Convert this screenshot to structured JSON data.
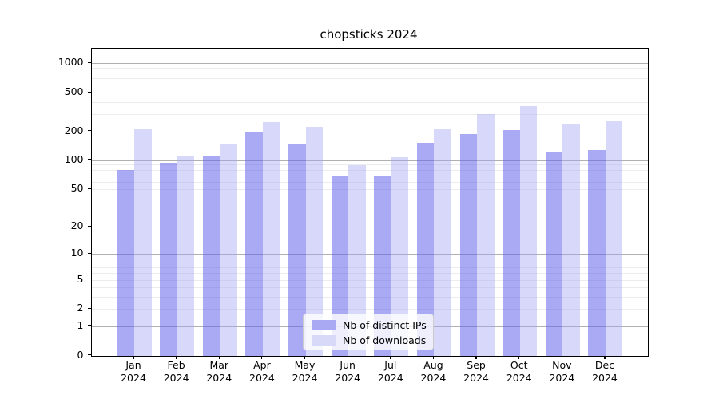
{
  "chart_data": {
    "type": "bar",
    "title": "chopsticks 2024",
    "categories": [
      "Jan",
      "Feb",
      "Mar",
      "Apr",
      "May",
      "Jun",
      "Jul",
      "Aug",
      "Sep",
      "Oct",
      "Nov",
      "Dec"
    ],
    "x_year_suffix": "2024",
    "series": [
      {
        "name": "Nb of distinct IPs",
        "legend_color": "#a9a9f3",
        "fill": "rgba(99,99,235,0.55)",
        "values": [
          79,
          95,
          112,
          199,
          147,
          70,
          70,
          153,
          187,
          206,
          121,
          128
        ]
      },
      {
        "name": "Nb of downloads",
        "legend_color": "#d8d8f9",
        "fill": "rgba(163,163,242,0.42)",
        "values": [
          210,
          111,
          148,
          247,
          221,
          90,
          107,
          209,
          299,
          364,
          235,
          252
        ]
      }
    ],
    "yscale": "log1p",
    "ylim": [
      0,
      1400
    ],
    "y_ticks": [
      1000,
      500,
      200,
      100,
      50,
      20,
      10,
      5,
      2,
      1,
      0
    ],
    "y_major_gridlines": [
      1,
      10,
      100,
      1000
    ],
    "y_minor_gridlines": [
      2,
      3,
      4,
      5,
      6,
      7,
      8,
      9,
      20,
      30,
      40,
      50,
      60,
      70,
      80,
      90,
      200,
      300,
      400,
      500,
      600,
      700,
      800,
      900
    ],
    "grid": "both",
    "legend_position": "lower center",
    "colors": {
      "grid_major": "#b0b0b0",
      "grid_minor": "#ececec",
      "axis": "#000000",
      "text": "#000000",
      "legend_bg": "rgba(255,255,255,0.8)",
      "legend_border": "#cccccc"
    }
  }
}
